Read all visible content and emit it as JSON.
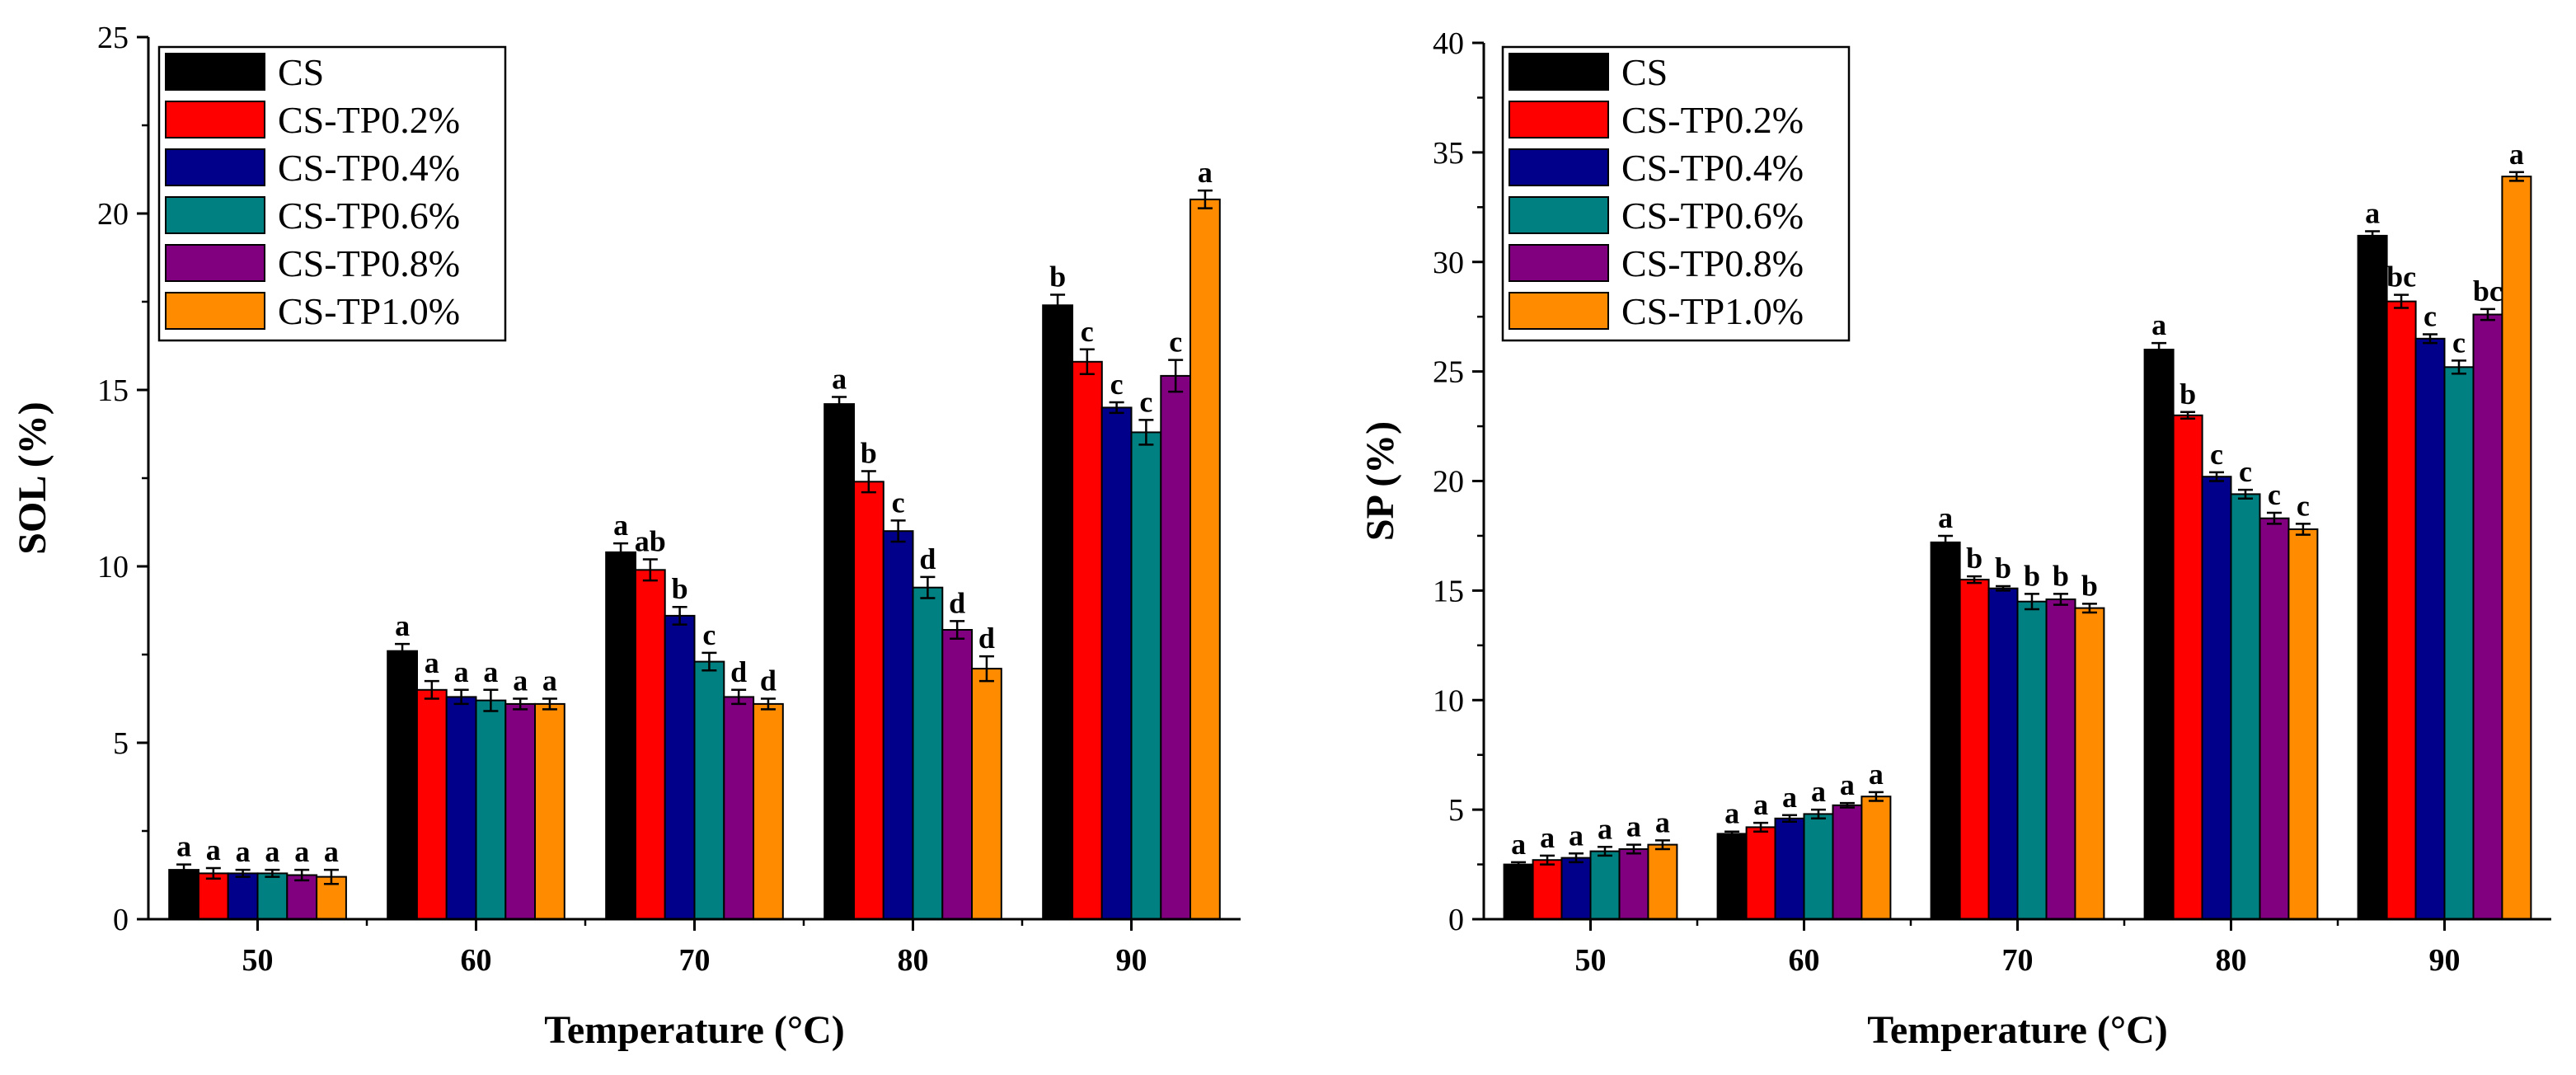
{
  "colors": {
    "CS": "#000000",
    "CS-TP0.2%": "#ff0000",
    "CS-TP0.4%": "#00008b",
    "CS-TP0.6%": "#008080",
    "CS-TP0.8%": "#800080",
    "CS-TP1.0%": "#ff8c00"
  },
  "chart_data": [
    {
      "type": "bar",
      "title": "",
      "xlabel": "Temperature (°C)",
      "ylabel": "SOL (%)",
      "categories": [
        "50",
        "60",
        "70",
        "80",
        "90"
      ],
      "ylim": [
        0,
        25
      ],
      "yticks": [
        "0",
        "5",
        "10",
        "15",
        "20",
        "25"
      ],
      "legend_position": "top-left",
      "series": [
        {
          "name": "CS",
          "values": [
            1.4,
            7.6,
            10.4,
            14.6,
            17.4
          ],
          "errors": [
            0.15,
            0.2,
            0.25,
            0.2,
            0.3
          ],
          "labels": [
            "a",
            "a",
            "a",
            "a",
            "b"
          ]
        },
        {
          "name": "CS-TP0.2%",
          "values": [
            1.3,
            6.5,
            9.9,
            12.4,
            15.8
          ],
          "errors": [
            0.15,
            0.25,
            0.3,
            0.3,
            0.35
          ],
          "labels": [
            "a",
            "a",
            "ab",
            "b",
            "c"
          ]
        },
        {
          "name": "CS-TP0.4%",
          "values": [
            1.3,
            6.3,
            8.6,
            11.0,
            14.5
          ],
          "errors": [
            0.1,
            0.2,
            0.25,
            0.3,
            0.15
          ],
          "labels": [
            "a",
            "a",
            "b",
            "c",
            "c"
          ]
        },
        {
          "name": "CS-TP0.6%",
          "values": [
            1.3,
            6.2,
            7.3,
            9.4,
            13.8
          ],
          "errors": [
            0.1,
            0.3,
            0.25,
            0.3,
            0.35
          ],
          "labels": [
            "a",
            "a",
            "c",
            "d",
            "c"
          ]
        },
        {
          "name": "CS-TP0.8%",
          "values": [
            1.25,
            6.1,
            6.3,
            8.2,
            15.4
          ],
          "errors": [
            0.15,
            0.15,
            0.2,
            0.25,
            0.45
          ],
          "labels": [
            "a",
            "a",
            "d",
            "d",
            "c"
          ]
        },
        {
          "name": "CS-TP1.0%",
          "values": [
            1.2,
            6.1,
            6.1,
            7.1,
            20.4
          ],
          "errors": [
            0.2,
            0.15,
            0.15,
            0.35,
            0.25
          ],
          "labels": [
            "a",
            "a",
            "d",
            "d",
            "a"
          ]
        }
      ]
    },
    {
      "type": "bar",
      "title": "",
      "xlabel": "Temperature (°C)",
      "ylabel": "SP (%)",
      "categories": [
        "50",
        "60",
        "70",
        "80",
        "90"
      ],
      "ylim": [
        0,
        40
      ],
      "yticks": [
        "0",
        "5",
        "10",
        "15",
        "20",
        "25",
        "30",
        "35",
        "40"
      ],
      "legend_position": "top-left",
      "series": [
        {
          "name": "CS",
          "values": [
            2.5,
            3.9,
            17.2,
            26.0,
            31.2
          ],
          "errors": [
            0.1,
            0.1,
            0.3,
            0.3,
            0.2
          ],
          "labels": [
            "a",
            "a",
            "a",
            "a",
            "a"
          ]
        },
        {
          "name": "CS-TP0.2%",
          "values": [
            2.7,
            4.2,
            15.5,
            23.0,
            28.2
          ],
          "errors": [
            0.2,
            0.2,
            0.15,
            0.15,
            0.3
          ],
          "labels": [
            "a",
            "a",
            "b",
            "b",
            "bc"
          ]
        },
        {
          "name": "CS-TP0.4%",
          "values": [
            2.8,
            4.6,
            15.1,
            20.2,
            26.5
          ],
          "errors": [
            0.2,
            0.15,
            0.1,
            0.2,
            0.2
          ],
          "labels": [
            "a",
            "a",
            "b",
            "c",
            "c"
          ]
        },
        {
          "name": "CS-TP0.6%",
          "values": [
            3.1,
            4.8,
            14.5,
            19.4,
            25.2
          ],
          "errors": [
            0.2,
            0.2,
            0.35,
            0.2,
            0.3
          ],
          "labels": [
            "a",
            "a",
            "b",
            "c",
            "c"
          ]
        },
        {
          "name": "CS-TP0.8%",
          "values": [
            3.2,
            5.2,
            14.6,
            18.3,
            27.6
          ],
          "errors": [
            0.2,
            0.1,
            0.25,
            0.25,
            0.25
          ],
          "labels": [
            "a",
            "a",
            "b",
            "c",
            "bc"
          ]
        },
        {
          "name": "CS-TP1.0%",
          "values": [
            3.4,
            5.6,
            14.2,
            17.8,
            33.9
          ],
          "errors": [
            0.2,
            0.2,
            0.2,
            0.25,
            0.2
          ],
          "labels": [
            "a",
            "a",
            "b",
            "c",
            "a"
          ]
        }
      ]
    }
  ]
}
